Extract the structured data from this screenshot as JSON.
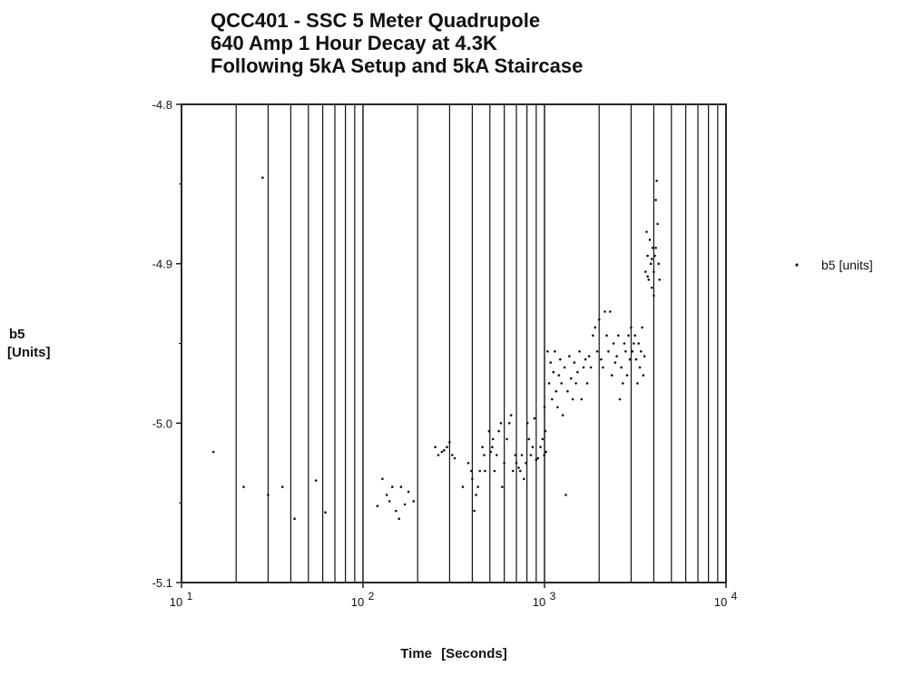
{
  "chart_data": {
    "type": "scatter",
    "title_lines": [
      "QCC401 - SSC 5 Meter Quadrupole",
      "640 Amp 1 Hour Decay at 4.3K",
      "Following 5kA Setup and 5kA Staircase"
    ],
    "xlabel": "Time [Seconds]",
    "ylabel_lines": [
      "b5",
      "[Units]"
    ],
    "x_scale": "log",
    "xlim": [
      10,
      10000
    ],
    "ylim": [
      -5.1,
      -4.8
    ],
    "x_ticks": [
      {
        "base": "10",
        "exp": "1"
      },
      {
        "base": "10",
        "exp": "2"
      },
      {
        "base": "10",
        "exp": "3"
      },
      {
        "base": "10",
        "exp": "4"
      }
    ],
    "y_ticks": [
      "-4.8",
      "-4.9",
      "-5.0",
      "-5.1"
    ],
    "grid": "vertical",
    "legend_position": "right",
    "series": [
      {
        "name": "b5 [units]",
        "color": "#111111",
        "points": [
          [
            15,
            -5.018
          ],
          [
            22,
            -5.04
          ],
          [
            28,
            -4.846
          ],
          [
            30,
            -5.045
          ],
          [
            36,
            -5.04
          ],
          [
            42,
            -5.06
          ],
          [
            55,
            -5.036
          ],
          [
            62,
            -5.056
          ],
          [
            128,
            -5.035
          ],
          [
            135,
            -5.045
          ],
          [
            140,
            -5.049
          ],
          [
            145,
            -5.04
          ],
          [
            152,
            -5.055
          ],
          [
            158,
            -5.06
          ],
          [
            162,
            -5.04
          ],
          [
            170,
            -5.051
          ],
          [
            178,
            -5.043
          ],
          [
            190,
            -5.049
          ],
          [
            120,
            -5.052
          ],
          [
            250,
            -5.015
          ],
          [
            260,
            -5.02
          ],
          [
            272,
            -5.018
          ],
          [
            280,
            -5.017
          ],
          [
            290,
            -5.015
          ],
          [
            300,
            -5.012
          ],
          [
            310,
            -5.02
          ],
          [
            320,
            -5.022
          ],
          [
            355,
            -5.04
          ],
          [
            380,
            -5.025
          ],
          [
            395,
            -5.03
          ],
          [
            400,
            -5.035
          ],
          [
            410,
            -5.055
          ],
          [
            420,
            -5.045
          ],
          [
            430,
            -5.04
          ],
          [
            440,
            -5.03
          ],
          [
            455,
            -5.015
          ],
          [
            465,
            -5.02
          ],
          [
            470,
            -5.03
          ],
          [
            495,
            -5.005
          ],
          [
            505,
            -5.018
          ],
          [
            515,
            -5.015
          ],
          [
            520,
            -5.01
          ],
          [
            530,
            -5.03
          ],
          [
            545,
            -5.02
          ],
          [
            560,
            -5.005
          ],
          [
            575,
            -5.0
          ],
          [
            585,
            -5.04
          ],
          [
            600,
            -5.025
          ],
          [
            620,
            -5.01
          ],
          [
            640,
            -5.0
          ],
          [
            655,
            -4.995
          ],
          [
            670,
            -5.03
          ],
          [
            690,
            -5.02
          ],
          [
            700,
            -5.025
          ],
          [
            720,
            -5.028
          ],
          [
            735,
            -5.03
          ],
          [
            750,
            -5.02
          ],
          [
            770,
            -5.035
          ],
          [
            790,
            -5.025
          ],
          [
            805,
            -5.0
          ],
          [
            820,
            -5.01
          ],
          [
            840,
            -5.02
          ],
          [
            860,
            -5.015
          ],
          [
            880,
            -4.997
          ],
          [
            900,
            -5.023
          ],
          [
            920,
            -5.022
          ],
          [
            950,
            -5.015
          ],
          [
            975,
            -5.01
          ],
          [
            995,
            -5.02
          ],
          [
            1000,
            -4.99
          ],
          [
            1010,
            -5.005
          ],
          [
            1020,
            -5.018
          ],
          [
            1040,
            -4.955
          ],
          [
            1060,
            -4.975
          ],
          [
            1080,
            -4.962
          ],
          [
            1100,
            -4.985
          ],
          [
            1120,
            -4.968
          ],
          [
            1140,
            -4.955
          ],
          [
            1160,
            -4.98
          ],
          [
            1180,
            -4.99
          ],
          [
            1200,
            -4.97
          ],
          [
            1220,
            -4.96
          ],
          [
            1240,
            -4.975
          ],
          [
            1260,
            -4.995
          ],
          [
            1290,
            -4.965
          ],
          [
            1310,
            -5.045
          ],
          [
            1340,
            -4.98
          ],
          [
            1370,
            -4.958
          ],
          [
            1400,
            -4.972
          ],
          [
            1430,
            -4.985
          ],
          [
            1460,
            -4.962
          ],
          [
            1490,
            -4.975
          ],
          [
            1520,
            -4.968
          ],
          [
            1560,
            -4.955
          ],
          [
            1600,
            -4.985
          ],
          [
            1640,
            -4.965
          ],
          [
            1680,
            -4.96
          ],
          [
            1720,
            -4.975
          ],
          [
            1760,
            -4.958
          ],
          [
            1800,
            -4.965
          ],
          [
            1850,
            -4.945
          ],
          [
            1900,
            -4.94
          ],
          [
            1950,
            -4.955
          ],
          [
            2000,
            -4.935
          ],
          [
            2050,
            -4.96
          ],
          [
            2100,
            -4.965
          ],
          [
            2150,
            -4.93
          ],
          [
            2200,
            -4.945
          ],
          [
            2250,
            -4.955
          ],
          [
            2300,
            -4.93
          ],
          [
            2350,
            -4.97
          ],
          [
            2400,
            -4.95
          ],
          [
            2450,
            -4.962
          ],
          [
            2500,
            -4.958
          ],
          [
            2550,
            -4.945
          ],
          [
            2600,
            -4.985
          ],
          [
            2650,
            -4.965
          ],
          [
            2700,
            -4.975
          ],
          [
            2750,
            -4.95
          ],
          [
            2800,
            -4.955
          ],
          [
            2850,
            -4.97
          ],
          [
            2900,
            -4.945
          ],
          [
            2950,
            -4.96
          ],
          [
            3000,
            -4.94
          ],
          [
            3050,
            -4.955
          ],
          [
            3100,
            -4.95
          ],
          [
            3150,
            -4.945
          ],
          [
            3200,
            -4.96
          ],
          [
            3250,
            -4.975
          ],
          [
            3300,
            -4.95
          ],
          [
            3350,
            -4.965
          ],
          [
            3400,
            -4.955
          ],
          [
            3450,
            -4.94
          ],
          [
            3500,
            -4.97
          ],
          [
            3550,
            -4.958
          ],
          [
            3600,
            -4.905
          ],
          [
            3650,
            -4.88
          ],
          [
            3700,
            -4.895
          ],
          [
            3750,
            -4.91
          ],
          [
            3800,
            -4.885
          ],
          [
            3850,
            -4.9
          ],
          [
            3900,
            -4.915
          ],
          [
            3950,
            -4.89
          ],
          [
            4000,
            -4.905
          ],
          [
            4050,
            -4.895
          ],
          [
            4100,
            -4.86
          ],
          [
            4150,
            -4.848
          ],
          [
            4200,
            -4.875
          ],
          [
            4250,
            -4.9
          ],
          [
            4300,
            -4.91
          ],
          [
            4100,
            -4.89
          ],
          [
            3900,
            -4.897
          ],
          [
            3700,
            -4.908
          ],
          [
            4000,
            -4.92
          ]
        ]
      }
    ],
    "legend": [
      {
        "label": "b5 [units]"
      }
    ]
  }
}
